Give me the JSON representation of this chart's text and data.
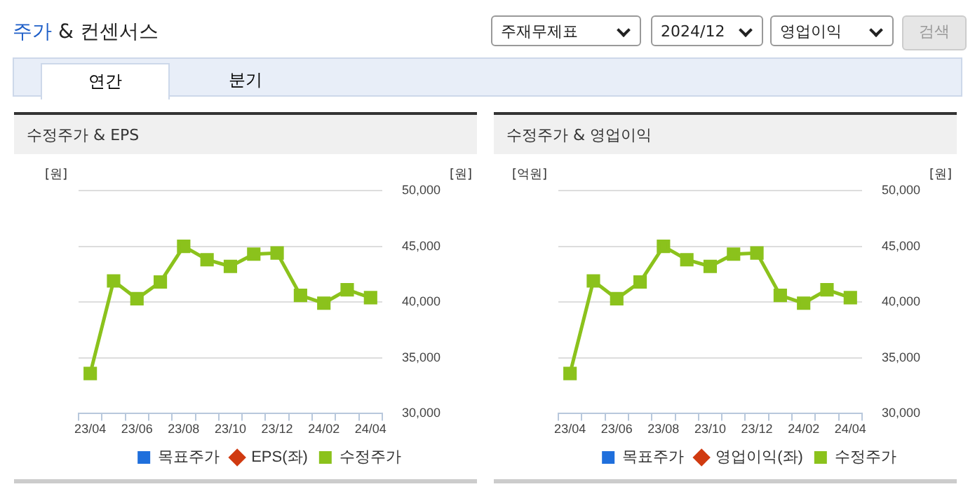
{
  "chart_data": [
    {
      "type": "line",
      "title": "수정주가 & EPS",
      "annotations": [
        "주가 & 컨센서스",
        "주재무제표",
        "2024/12",
        "영업이익",
        "검색",
        "연간",
        "분기"
      ],
      "ylabel": "[원]",
      "y2label": "[원]",
      "categories": [
        "23/04",
        null,
        "23/06",
        null,
        "23/08",
        null,
        "23/10",
        null,
        "23/12",
        null,
        "24/02",
        null,
        "24/04"
      ],
      "series": [
        {
          "name": "목표주가",
          "color": "#1f6fdc",
          "values": [
            null,
            null,
            null,
            null,
            null,
            null,
            null,
            null,
            null,
            null,
            null,
            null,
            null
          ]
        },
        {
          "name": "EPS(좌)",
          "color": "#d03a10",
          "values": [
            null,
            null,
            null,
            null,
            null,
            null,
            null,
            null,
            null,
            null,
            null,
            null,
            null
          ]
        },
        {
          "name": "수정주가",
          "color": "#8bc21c",
          "axis": "y2",
          "values": [
            33600,
            41900,
            40300,
            41800,
            45000,
            43800,
            43200,
            44300,
            44400,
            40600,
            39900,
            41100,
            40400
          ]
        }
      ],
      "y2lim": [
        30000,
        50000
      ],
      "y2ticks": [
        {
          "value": 30000,
          "label": "30,000"
        },
        {
          "value": 35000,
          "label": "35,000"
        },
        {
          "value": 40000,
          "label": "40,000"
        },
        {
          "value": 45000,
          "label": "45,000"
        },
        {
          "value": 50000,
          "label": "50,000"
        }
      ],
      "grid": "y",
      "legend": "bottom",
      "marker": "square",
      "tick_labels": "x"
    },
    {
      "type": "line",
      "title": "수정주가 & 영업이익",
      "ylabel": "[억원]",
      "y2label": "[원]",
      "categories": [
        "23/04",
        null,
        "23/06",
        null,
        "23/08",
        null,
        "23/10",
        null,
        "23/12",
        null,
        "24/02",
        null,
        "24/04"
      ],
      "series": [
        {
          "name": "목표주가",
          "color": "#1f6fdc",
          "values": [
            null,
            null,
            null,
            null,
            null,
            null,
            null,
            null,
            null,
            null,
            null,
            null,
            null
          ]
        },
        {
          "name": "영업이익(좌)",
          "color": "#d03a10",
          "values": [
            null,
            null,
            null,
            null,
            null,
            null,
            null,
            null,
            null,
            null,
            null,
            null,
            null
          ]
        },
        {
          "name": "수정주가",
          "color": "#8bc21c",
          "axis": "y2",
          "values": [
            33600,
            41900,
            40300,
            41800,
            45000,
            43800,
            43200,
            44300,
            44400,
            40600,
            39900,
            41100,
            40400
          ]
        }
      ],
      "y2lim": [
        30000,
        50000
      ],
      "y2ticks": [
        {
          "value": 30000,
          "label": "30,000"
        },
        {
          "value": 35000,
          "label": "35,000"
        },
        {
          "value": 40000,
          "label": "40,000"
        },
        {
          "value": 45000,
          "label": "45,000"
        },
        {
          "value": 50000,
          "label": "50,000"
        }
      ],
      "grid": "y",
      "legend": "bottom",
      "marker": "square",
      "tick_labels": "x"
    }
  ]
}
